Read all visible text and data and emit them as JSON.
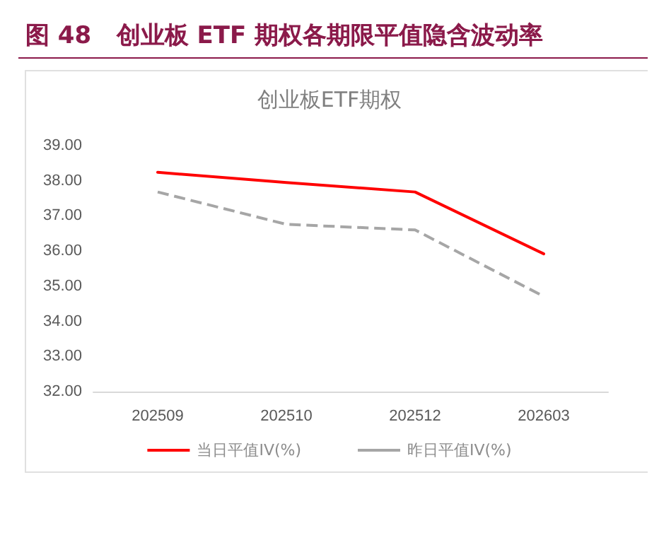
{
  "chart_data": {
    "type": "line",
    "title": "图 48   创业板 ETF 期权各期限平值隐含波动率",
    "subtitle": "创业板ETF期权",
    "categories": [
      "202509",
      "202510",
      "202512",
      "202603"
    ],
    "series": [
      {
        "name": "当日平值IV(%)",
        "color": "#ff0000",
        "values": [
          38.24,
          37.95,
          37.68,
          35.92
        ],
        "line_style": "solid"
      },
      {
        "name": "昨日平值IV(%)",
        "color": "#a6a6a6",
        "values": [
          37.68,
          36.76,
          36.6,
          34.71
        ],
        "line_style": "dashed"
      }
    ],
    "ylim": [
      32,
      39
    ],
    "yticks": [
      {
        "value": 32,
        "label": "32.00"
      },
      {
        "value": 33,
        "label": "33.00"
      },
      {
        "value": 34,
        "label": "34.00"
      },
      {
        "value": 35,
        "label": "35.00"
      },
      {
        "value": 36,
        "label": "36.00"
      },
      {
        "value": 37,
        "label": "37.00"
      },
      {
        "value": 38,
        "label": "38.00"
      },
      {
        "value": 39,
        "label": "39.00"
      }
    ],
    "grid": false,
    "legend": "bottom",
    "marker": "none"
  }
}
